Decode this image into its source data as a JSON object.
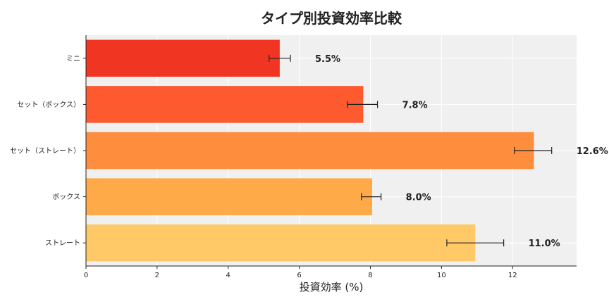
{
  "chart_data": {
    "type": "bar",
    "orientation": "horizontal",
    "title": "タイプ別投資効率比較",
    "xlabel": "投資効率 (%)",
    "ylabel": "",
    "xlim": [
      0,
      13.8
    ],
    "xticks": [
      0,
      2,
      4,
      6,
      8,
      10,
      12
    ],
    "grid": true,
    "categories": [
      "ミニ",
      "セット（ボックス）",
      "セット（ストレート）",
      "ボックス",
      "ストレート"
    ],
    "values": [
      5.45,
      7.8,
      12.6,
      8.05,
      10.95
    ],
    "value_labels": [
      "5.5%",
      "7.8%",
      "12.6%",
      "8.0%",
      "11.0%"
    ],
    "error_low": [
      5.15,
      7.35,
      12.05,
      7.75,
      10.15
    ],
    "error_high": [
      5.75,
      8.2,
      13.1,
      8.3,
      11.75
    ],
    "colors": [
      "#f03523",
      "#fd5a30",
      "#fe8e3e",
      "#feaa48",
      "#fec966"
    ]
  }
}
